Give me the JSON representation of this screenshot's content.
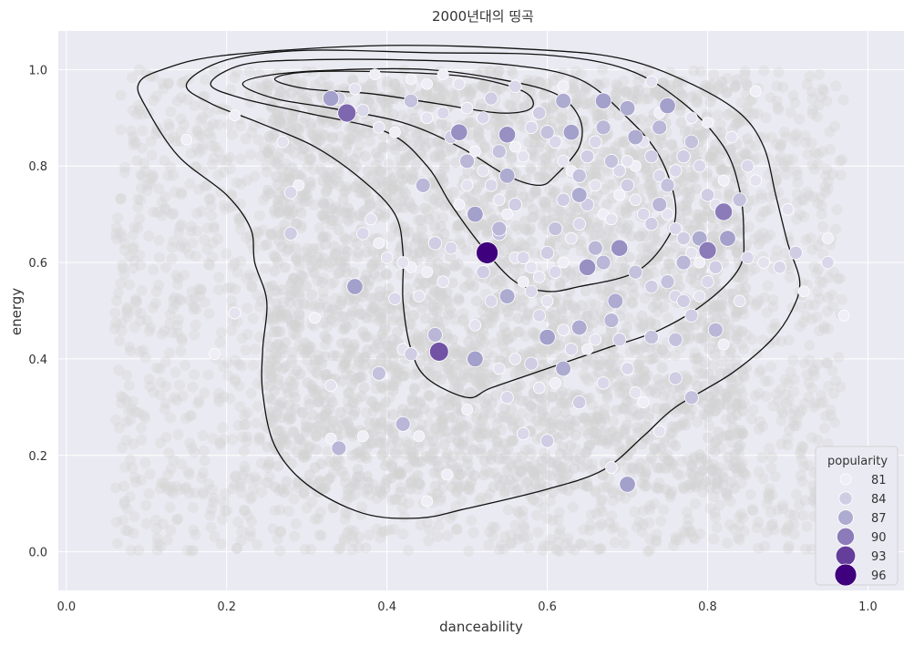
{
  "chart_data": {
    "type": "scatter",
    "title": "2000년대의 띵곡",
    "xlabel": "danceability",
    "ylabel": "energy",
    "xlim": [
      -0.01,
      1.045
    ],
    "ylim": [
      -0.08,
      1.08
    ],
    "x_ticks": [
      "0.0",
      "0.2",
      "0.4",
      "0.6",
      "0.8",
      "1.0"
    ],
    "y_ticks": [
      "0.0",
      "0.2",
      "0.4",
      "0.6",
      "0.8",
      "1.0"
    ],
    "grid": true,
    "background": "#eaeaf2",
    "background_points": {
      "x_range": [
        0.06,
        0.97
      ],
      "y_range": [
        0.0,
        1.0
      ],
      "color": "#d3d3d3",
      "description_note": "dense grey scatter of all songs"
    },
    "kde_contours": [
      [
        [
          0.09,
          0.97
        ],
        [
          0.12,
          1.0
        ],
        [
          0.2,
          1.03
        ],
        [
          0.4,
          1.05
        ],
        [
          0.6,
          1.04
        ],
        [
          0.7,
          1.02
        ],
        [
          0.78,
          0.97
        ],
        [
          0.84,
          0.91
        ],
        [
          0.87,
          0.84
        ],
        [
          0.885,
          0.74
        ],
        [
          0.9,
          0.64
        ],
        [
          0.915,
          0.56
        ],
        [
          0.905,
          0.5
        ],
        [
          0.88,
          0.44
        ],
        [
          0.83,
          0.37
        ],
        [
          0.76,
          0.3
        ],
        [
          0.72,
          0.24
        ],
        [
          0.67,
          0.17
        ],
        [
          0.6,
          0.13
        ],
        [
          0.5,
          0.09
        ],
        [
          0.44,
          0.07
        ],
        [
          0.37,
          0.08
        ],
        [
          0.3,
          0.14
        ],
        [
          0.26,
          0.22
        ],
        [
          0.245,
          0.33
        ],
        [
          0.245,
          0.42
        ],
        [
          0.25,
          0.52
        ],
        [
          0.235,
          0.6
        ],
        [
          0.23,
          0.67
        ],
        [
          0.2,
          0.74
        ],
        [
          0.14,
          0.82
        ],
        [
          0.1,
          0.92
        ],
        [
          0.09,
          0.97
        ]
      ],
      [
        [
          0.15,
          0.97
        ],
        [
          0.2,
          1.02
        ],
        [
          0.3,
          1.04
        ],
        [
          0.45,
          1.035
        ],
        [
          0.6,
          1.03
        ],
        [
          0.7,
          1.0
        ],
        [
          0.77,
          0.93
        ],
        [
          0.82,
          0.84
        ],
        [
          0.84,
          0.75
        ],
        [
          0.845,
          0.66
        ],
        [
          0.84,
          0.59
        ],
        [
          0.8,
          0.52
        ],
        [
          0.74,
          0.46
        ],
        [
          0.67,
          0.42
        ],
        [
          0.6,
          0.38
        ],
        [
          0.53,
          0.34
        ],
        [
          0.5,
          0.32
        ],
        [
          0.45,
          0.36
        ],
        [
          0.43,
          0.42
        ],
        [
          0.42,
          0.52
        ],
        [
          0.42,
          0.62
        ],
        [
          0.41,
          0.7
        ],
        [
          0.37,
          0.77
        ],
        [
          0.31,
          0.84
        ],
        [
          0.24,
          0.89
        ],
        [
          0.18,
          0.93
        ],
        [
          0.15,
          0.97
        ]
      ],
      [
        [
          0.18,
          0.97
        ],
        [
          0.22,
          1.01
        ],
        [
          0.3,
          1.02
        ],
        [
          0.42,
          1.02
        ],
        [
          0.55,
          1.01
        ],
        [
          0.64,
          0.98
        ],
        [
          0.7,
          0.9
        ],
        [
          0.74,
          0.82
        ],
        [
          0.76,
          0.72
        ],
        [
          0.75,
          0.65
        ],
        [
          0.71,
          0.58
        ],
        [
          0.64,
          0.55
        ],
        [
          0.6,
          0.54
        ],
        [
          0.56,
          0.56
        ],
        [
          0.52,
          0.63
        ],
        [
          0.48,
          0.72
        ],
        [
          0.45,
          0.8
        ],
        [
          0.4,
          0.87
        ],
        [
          0.3,
          0.91
        ],
        [
          0.22,
          0.94
        ],
        [
          0.18,
          0.97
        ]
      ],
      [
        [
          0.22,
          0.97
        ],
        [
          0.26,
          0.99
        ],
        [
          0.35,
          1.0
        ],
        [
          0.45,
          1.0
        ],
        [
          0.54,
          0.98
        ],
        [
          0.61,
          0.95
        ],
        [
          0.64,
          0.9
        ],
        [
          0.64,
          0.84
        ],
        [
          0.61,
          0.78
        ],
        [
          0.59,
          0.76
        ],
        [
          0.55,
          0.78
        ],
        [
          0.49,
          0.84
        ],
        [
          0.42,
          0.89
        ],
        [
          0.33,
          0.92
        ],
        [
          0.26,
          0.94
        ],
        [
          0.22,
          0.97
        ]
      ],
      [
        [
          0.26,
          0.98
        ],
        [
          0.3,
          0.995
        ],
        [
          0.4,
          0.995
        ],
        [
          0.5,
          0.985
        ],
        [
          0.57,
          0.955
        ],
        [
          0.58,
          0.92
        ],
        [
          0.54,
          0.91
        ],
        [
          0.46,
          0.93
        ],
        [
          0.38,
          0.95
        ],
        [
          0.3,
          0.96
        ],
        [
          0.26,
          0.98
        ]
      ]
    ],
    "series_note": "highlighted songs colored and sized by popularity",
    "points": [
      [
        0.525,
        0.62,
        96
      ],
      [
        0.465,
        0.415,
        92
      ],
      [
        0.35,
        0.91,
        91
      ],
      [
        0.82,
        0.705,
        90
      ],
      [
        0.8,
        0.625,
        90
      ],
      [
        0.49,
        0.87,
        89
      ],
      [
        0.55,
        0.865,
        89
      ],
      [
        0.75,
        0.925,
        88
      ],
      [
        0.36,
        0.55,
        88
      ],
      [
        0.445,
        0.76,
        86
      ],
      [
        0.51,
        0.7,
        88
      ],
      [
        0.5,
        0.81,
        86
      ],
      [
        0.62,
        0.935,
        87
      ],
      [
        0.63,
        0.87,
        88
      ],
      [
        0.65,
        0.59,
        89
      ],
      [
        0.69,
        0.63,
        89
      ],
      [
        0.67,
        0.935,
        88
      ],
      [
        0.7,
        0.92,
        87
      ],
      [
        0.71,
        0.86,
        87
      ],
      [
        0.74,
        0.88,
        86
      ],
      [
        0.33,
        0.94,
        88
      ],
      [
        0.7,
        0.14,
        88
      ],
      [
        0.51,
        0.4,
        88
      ],
      [
        0.64,
        0.465,
        87
      ],
      [
        0.68,
        0.48,
        86
      ],
      [
        0.685,
        0.52,
        87
      ],
      [
        0.6,
        0.445,
        88
      ],
      [
        0.62,
        0.38,
        87
      ],
      [
        0.55,
        0.53,
        87
      ],
      [
        0.46,
        0.45,
        86
      ],
      [
        0.42,
        0.265,
        86
      ],
      [
        0.34,
        0.215,
        86
      ],
      [
        0.39,
        0.37,
        85
      ],
      [
        0.64,
        0.74,
        87
      ],
      [
        0.66,
        0.63,
        86
      ],
      [
        0.67,
        0.6,
        86
      ],
      [
        0.71,
        0.58,
        85
      ],
      [
        0.73,
        0.55,
        84
      ],
      [
        0.77,
        0.6,
        86
      ],
      [
        0.79,
        0.65,
        87
      ],
      [
        0.825,
        0.65,
        88
      ],
      [
        0.81,
        0.46,
        86
      ],
      [
        0.76,
        0.44,
        85
      ],
      [
        0.78,
        0.32,
        85
      ],
      [
        0.76,
        0.36,
        84
      ],
      [
        0.73,
        0.445,
        85
      ],
      [
        0.54,
        0.67,
        86
      ],
      [
        0.54,
        0.66,
        85
      ],
      [
        0.55,
        0.78,
        87
      ],
      [
        0.56,
        0.72,
        84
      ],
      [
        0.57,
        0.61,
        83
      ],
      [
        0.58,
        0.54,
        83
      ],
      [
        0.59,
        0.57,
        82
      ],
      [
        0.6,
        0.62,
        84
      ],
      [
        0.61,
        0.67,
        85
      ],
      [
        0.62,
        0.73,
        84
      ],
      [
        0.64,
        0.78,
        85
      ],
      [
        0.65,
        0.82,
        84
      ],
      [
        0.66,
        0.85,
        83
      ],
      [
        0.67,
        0.88,
        86
      ],
      [
        0.68,
        0.81,
        85
      ],
      [
        0.69,
        0.79,
        83
      ],
      [
        0.7,
        0.76,
        84
      ],
      [
        0.71,
        0.73,
        82
      ],
      [
        0.72,
        0.7,
        83
      ],
      [
        0.73,
        0.68,
        84
      ],
      [
        0.74,
        0.72,
        86
      ],
      [
        0.75,
        0.76,
        85
      ],
      [
        0.76,
        0.79,
        83
      ],
      [
        0.77,
        0.82,
        84
      ],
      [
        0.78,
        0.85,
        85
      ],
      [
        0.79,
        0.8,
        83
      ],
      [
        0.8,
        0.74,
        84
      ],
      [
        0.81,
        0.72,
        82
      ],
      [
        0.82,
        0.77,
        81
      ],
      [
        0.84,
        0.73,
        85
      ],
      [
        0.85,
        0.8,
        83
      ],
      [
        0.86,
        0.77,
        82
      ],
      [
        0.87,
        0.6,
        82
      ],
      [
        0.89,
        0.59,
        83
      ],
      [
        0.9,
        0.71,
        82
      ],
      [
        0.91,
        0.62,
        84
      ],
      [
        0.95,
        0.6,
        83
      ],
      [
        0.92,
        0.54,
        81
      ],
      [
        0.97,
        0.49,
        81
      ],
      [
        0.95,
        0.65,
        81
      ],
      [
        0.86,
        0.955,
        81
      ],
      [
        0.73,
        0.975,
        82
      ],
      [
        0.62,
        0.965,
        81
      ],
      [
        0.56,
        0.965,
        83
      ],
      [
        0.49,
        0.97,
        82
      ],
      [
        0.47,
        0.99,
        81
      ],
      [
        0.45,
        0.97,
        81
      ],
      [
        0.43,
        0.98,
        81
      ],
      [
        0.385,
        0.99,
        81
      ],
      [
        0.36,
        0.96,
        82
      ],
      [
        0.34,
        0.94,
        84
      ],
      [
        0.37,
        0.915,
        83
      ],
      [
        0.39,
        0.88,
        82
      ],
      [
        0.41,
        0.87,
        81
      ],
      [
        0.43,
        0.935,
        85
      ],
      [
        0.45,
        0.9,
        82
      ],
      [
        0.47,
        0.91,
        83
      ],
      [
        0.48,
        0.86,
        84
      ],
      [
        0.5,
        0.92,
        82
      ],
      [
        0.52,
        0.9,
        83
      ],
      [
        0.53,
        0.94,
        84
      ],
      [
        0.54,
        0.83,
        85
      ],
      [
        0.56,
        0.84,
        81
      ],
      [
        0.57,
        0.82,
        82
      ],
      [
        0.58,
        0.88,
        83
      ],
      [
        0.59,
        0.91,
        84
      ],
      [
        0.6,
        0.87,
        85
      ],
      [
        0.61,
        0.85,
        83
      ],
      [
        0.62,
        0.81,
        82
      ],
      [
        0.63,
        0.79,
        81
      ],
      [
        0.21,
        0.905,
        81
      ],
      [
        0.15,
        0.855,
        81
      ],
      [
        0.27,
        0.85,
        82
      ],
      [
        0.28,
        0.745,
        83
      ],
      [
        0.29,
        0.76,
        81
      ],
      [
        0.28,
        0.66,
        84
      ],
      [
        0.21,
        0.495,
        82
      ],
      [
        0.185,
        0.41,
        81
      ],
      [
        0.31,
        0.485,
        81
      ],
      [
        0.33,
        0.345,
        82
      ],
      [
        0.33,
        0.235,
        81
      ],
      [
        0.37,
        0.24,
        81
      ],
      [
        0.37,
        0.66,
        83
      ],
      [
        0.38,
        0.69,
        82
      ],
      [
        0.39,
        0.64,
        81
      ],
      [
        0.4,
        0.61,
        82
      ],
      [
        0.41,
        0.525,
        83
      ],
      [
        0.42,
        0.42,
        82
      ],
      [
        0.43,
        0.41,
        84
      ],
      [
        0.44,
        0.24,
        81
      ],
      [
        0.45,
        0.105,
        81
      ],
      [
        0.475,
        0.16,
        81
      ],
      [
        0.5,
        0.295,
        81
      ],
      [
        0.51,
        0.47,
        82
      ],
      [
        0.52,
        0.58,
        84
      ],
      [
        0.53,
        0.52,
        83
      ],
      [
        0.54,
        0.38,
        82
      ],
      [
        0.55,
        0.32,
        83
      ],
      [
        0.56,
        0.4,
        82
      ],
      [
        0.57,
        0.245,
        83
      ],
      [
        0.58,
        0.39,
        84
      ],
      [
        0.59,
        0.34,
        82
      ],
      [
        0.6,
        0.23,
        84
      ],
      [
        0.61,
        0.35,
        81
      ],
      [
        0.62,
        0.46,
        82
      ],
      [
        0.63,
        0.42,
        83
      ],
      [
        0.64,
        0.31,
        84
      ],
      [
        0.65,
        0.42,
        81
      ],
      [
        0.66,
        0.44,
        82
      ],
      [
        0.67,
        0.35,
        83
      ],
      [
        0.68,
        0.175,
        82
      ],
      [
        0.69,
        0.44,
        84
      ],
      [
        0.7,
        0.38,
        83
      ],
      [
        0.71,
        0.33,
        82
      ],
      [
        0.72,
        0.31,
        81
      ],
      [
        0.74,
        0.25,
        82
      ],
      [
        0.75,
        0.56,
        85
      ],
      [
        0.76,
        0.53,
        83
      ],
      [
        0.77,
        0.52,
        84
      ],
      [
        0.78,
        0.49,
        84
      ],
      [
        0.79,
        0.53,
        82
      ],
      [
        0.8,
        0.56,
        83
      ],
      [
        0.81,
        0.59,
        84
      ],
      [
        0.82,
        0.43,
        81
      ],
      [
        0.84,
        0.52,
        82
      ],
      [
        0.85,
        0.61,
        83
      ],
      [
        0.83,
        0.86,
        82
      ],
      [
        0.8,
        0.89,
        81
      ],
      [
        0.78,
        0.9,
        82
      ],
      [
        0.74,
        0.91,
        81
      ],
      [
        0.72,
        0.85,
        82
      ],
      [
        0.73,
        0.82,
        84
      ],
      [
        0.74,
        0.78,
        83
      ],
      [
        0.75,
        0.7,
        82
      ],
      [
        0.76,
        0.67,
        83
      ],
      [
        0.77,
        0.65,
        84
      ],
      [
        0.78,
        0.62,
        82
      ],
      [
        0.79,
        0.6,
        81
      ],
      [
        0.7,
        0.81,
        82
      ],
      [
        0.71,
        0.8,
        81
      ],
      [
        0.69,
        0.74,
        81
      ],
      [
        0.68,
        0.69,
        82
      ],
      [
        0.67,
        0.7,
        81
      ],
      [
        0.66,
        0.76,
        82
      ],
      [
        0.65,
        0.72,
        84
      ],
      [
        0.64,
        0.68,
        83
      ],
      [
        0.63,
        0.65,
        82
      ],
      [
        0.62,
        0.6,
        81
      ],
      [
        0.61,
        0.58,
        83
      ],
      [
        0.6,
        0.52,
        82
      ],
      [
        0.59,
        0.49,
        83
      ],
      [
        0.58,
        0.59,
        82
      ],
      [
        0.57,
        0.56,
        81
      ],
      [
        0.56,
        0.61,
        82
      ],
      [
        0.55,
        0.7,
        81
      ],
      [
        0.54,
        0.73,
        82
      ],
      [
        0.53,
        0.76,
        83
      ],
      [
        0.52,
        0.79,
        82
      ],
      [
        0.51,
        0.83,
        81
      ],
      [
        0.5,
        0.76,
        82
      ],
      [
        0.49,
        0.72,
        81
      ],
      [
        0.48,
        0.63,
        83
      ],
      [
        0.47,
        0.56,
        82
      ],
      [
        0.46,
        0.64,
        84
      ],
      [
        0.45,
        0.58,
        81
      ],
      [
        0.44,
        0.53,
        82
      ],
      [
        0.43,
        0.59,
        81
      ],
      [
        0.42,
        0.6,
        82
      ]
    ],
    "legend": {
      "title": "popularity",
      "entries": [
        {
          "label": "81",
          "value": 81
        },
        {
          "label": "84",
          "value": 84
        },
        {
          "label": "87",
          "value": 87
        },
        {
          "label": "90",
          "value": 90
        },
        {
          "label": "93",
          "value": 93
        },
        {
          "label": "96",
          "value": 96
        }
      ],
      "placement": "bottom-right"
    },
    "colors": {
      "low": "#efedf5",
      "high": "#3f007d",
      "contour": "#111111",
      "grid": "#ffffff",
      "point_stroke": "#ffffff"
    }
  }
}
